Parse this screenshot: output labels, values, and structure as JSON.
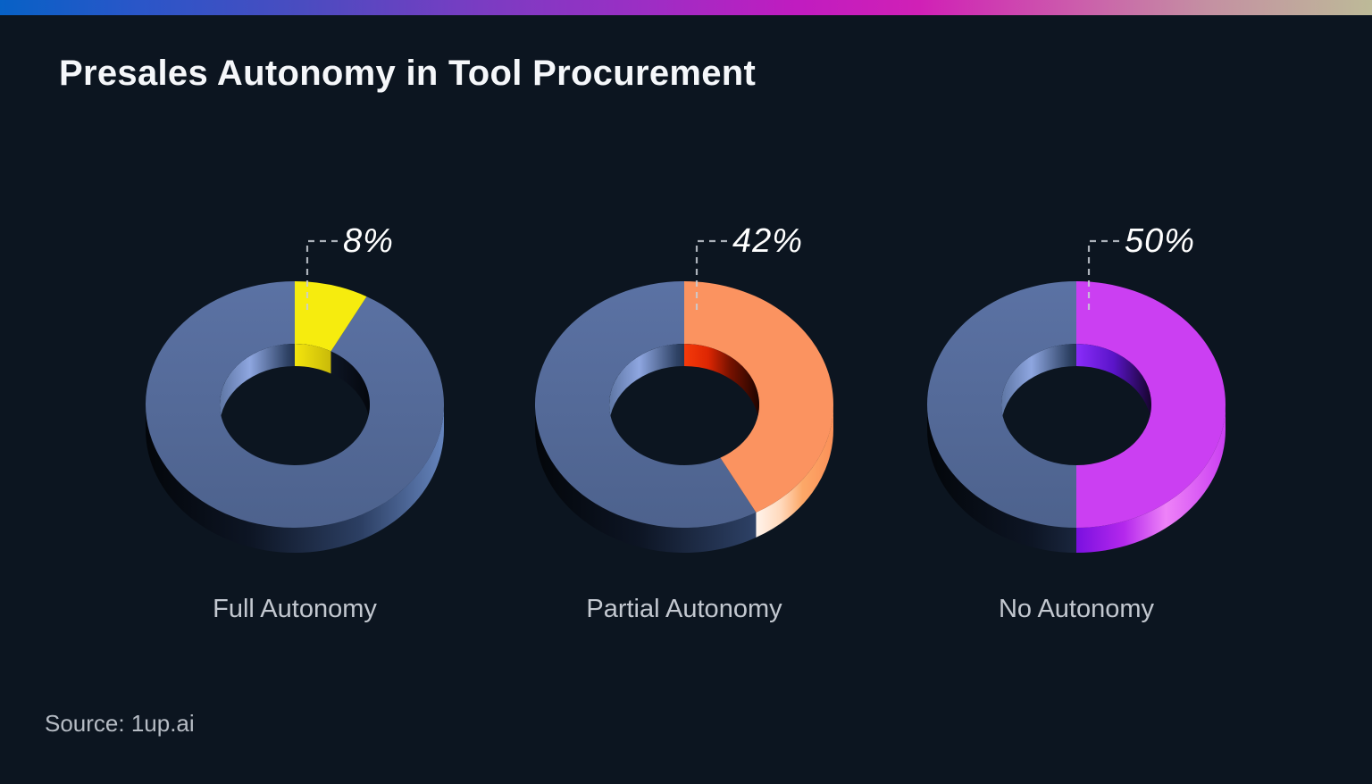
{
  "page": {
    "title": "Presales Autonomy in Tool Procurement",
    "source": "Source: 1up.ai",
    "background_color": "#0c1520",
    "topbar_gradient": [
      "#0761c6",
      "#2a56c8",
      "#4a4cc0",
      "#7a3cc2",
      "#9c2ec4",
      "#c01cc0",
      "#d020b6",
      "#cc5aac",
      "#c490a2",
      "#bdba98"
    ]
  },
  "chart_data": {
    "type": "pie",
    "variant": "3d-donut-trio",
    "title": "Presales Autonomy in Tool Procurement",
    "source": "Source: 1up.ai",
    "unit": "%",
    "legend_position": "below-each-donut",
    "categories": [
      "Full Autonomy",
      "Partial Autonomy",
      "No Autonomy"
    ],
    "values": [
      8,
      42,
      50
    ],
    "charts": [
      {
        "category": "Full Autonomy",
        "value": 8,
        "pct_label": "8%",
        "colors": {
          "slice_top": "#f6ec0e",
          "slice_wall": [
            "#f6ec0e",
            "#e8d90c"
          ],
          "slice_inner": [
            "#f4e50d",
            "#9a8c05"
          ],
          "rest_top": [
            "#5b72a4",
            "#4d628d"
          ],
          "rest_wall": [
            "#03060a",
            "#0d1524",
            "#2c3f63",
            "#6584bd"
          ],
          "rest_inner": [
            "#5e76a4",
            "#8ea6e0",
            "#2f4366",
            "#131e32",
            "#04070d"
          ]
        }
      },
      {
        "category": "Partial Autonomy",
        "value": 42,
        "pct_label": "42%",
        "colors": {
          "slice_top": "#fb9360",
          "slice_wall": [
            "#fff4ec",
            "#ffd9bc",
            "#fca868",
            "#fb9058"
          ],
          "slice_inner": [
            "#f53a0a",
            "#dd2603",
            "#7a1200",
            "#1e0400"
          ],
          "rest_top": [
            "#5b72a4",
            "#4d628d"
          ],
          "rest_wall": [
            "#03060a",
            "#0d1524",
            "#2c3f63",
            "#6584bd"
          ],
          "rest_inner": [
            "#5e76a4",
            "#8ea6e0",
            "#2f4366",
            "#131e32",
            "#04070d"
          ]
        }
      },
      {
        "category": "No Autonomy",
        "value": 50,
        "pct_label": "50%",
        "colors": {
          "slice_top": "#cb3ff2",
          "slice_wall": [
            "#7a10e0",
            "#b428ec",
            "#ee82f8",
            "#cb3ff2"
          ],
          "slice_inner": [
            "#8a2cfa",
            "#5a14c8",
            "#16042c"
          ],
          "rest_top": [
            "#5b72a4",
            "#4d628d"
          ],
          "rest_wall": [
            "#03060a",
            "#0d1524",
            "#2c3f63",
            "#6584bd"
          ],
          "rest_inner": [
            "#5e76a4",
            "#8ea6e0",
            "#2f4366",
            "#131e32",
            "#04070d"
          ]
        }
      }
    ]
  }
}
